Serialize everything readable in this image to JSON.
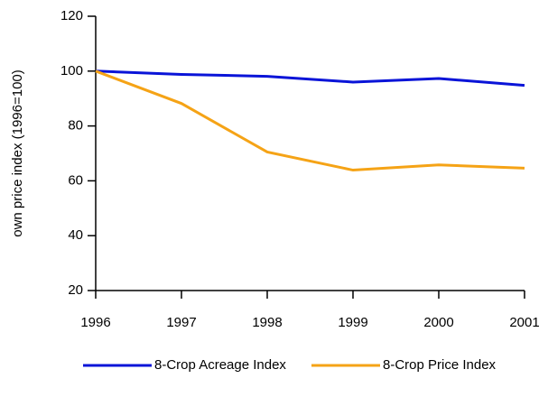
{
  "chart_data": {
    "type": "line",
    "y_label": "own price index (1996=100)",
    "x": [
      1996,
      1997,
      1998,
      1999,
      2000,
      2001
    ],
    "xlim": [
      1996,
      2001
    ],
    "xticks": [
      1996,
      1997,
      1998,
      1999,
      2000,
      2001
    ],
    "ylim": [
      20,
      120
    ],
    "yticks": [
      20,
      40,
      60,
      80,
      100,
      120
    ],
    "grid": false,
    "legend": "bottom",
    "series": [
      {
        "name": "8-Crop Acreage Index",
        "color": "#0a14d8",
        "values": [
          100,
          98.8,
          98.1,
          96.0,
          97.3,
          94.8
        ]
      },
      {
        "name": "8-Crop Price Index",
        "color": "#f5a316",
        "values": [
          100,
          88.2,
          70.5,
          63.9,
          65.8,
          64.6
        ]
      }
    ]
  }
}
